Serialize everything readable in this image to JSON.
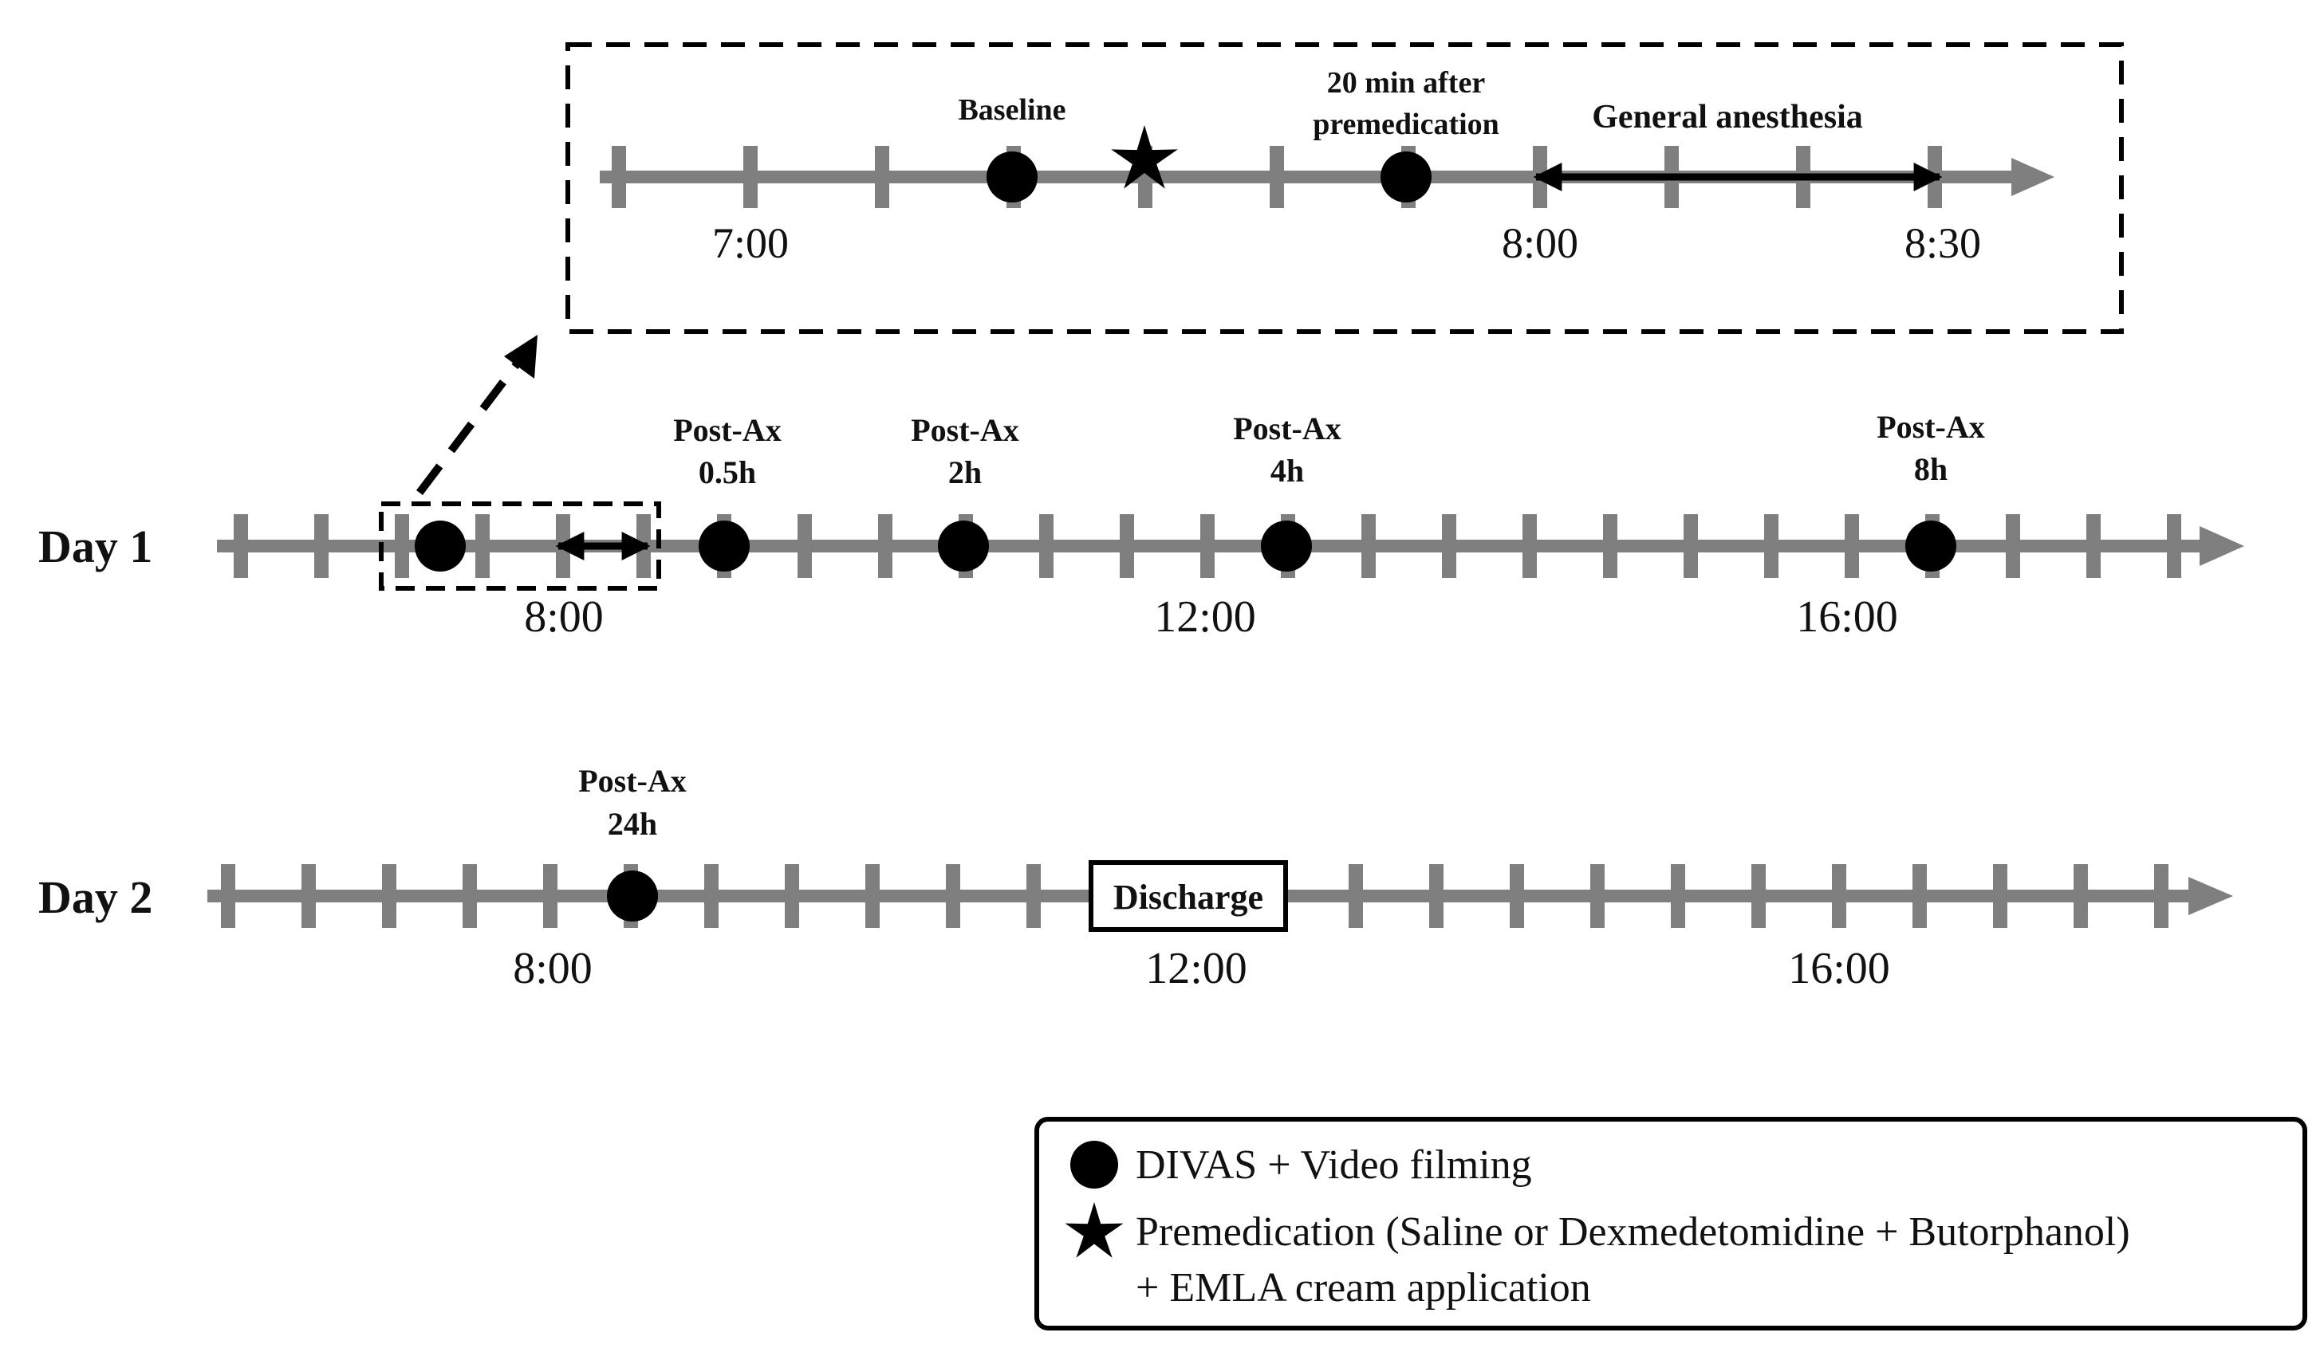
{
  "inset": {
    "time_labels": [
      "7:00",
      "8:00",
      "8:30"
    ],
    "baseline_label": "Baseline",
    "after_premed_label": [
      "20 min after",
      "premedication"
    ],
    "general_anesthesia_label": "General anesthesia"
  },
  "day1": {
    "label": "Day 1",
    "time_labels": [
      "8:00",
      "12:00",
      "16:00"
    ],
    "events": [
      {
        "label": [
          "Post-Ax",
          "0.5h"
        ]
      },
      {
        "label": [
          "Post-Ax",
          "2h"
        ]
      },
      {
        "label": [
          "Post-Ax",
          "4h"
        ]
      },
      {
        "label": [
          "Post-Ax",
          "8h"
        ]
      }
    ]
  },
  "day2": {
    "label": "Day 2",
    "time_labels": [
      "8:00",
      "12:00",
      "16:00"
    ],
    "event": {
      "label": [
        "Post-Ax",
        "24h"
      ]
    },
    "discharge_label": "Discharge"
  },
  "legend": {
    "items": [
      {
        "icon": "circle-icon",
        "text": "DIVAS + Video filming"
      },
      {
        "icon": "star-icon",
        "text": "Premedication (Saline or Dexmedetomidine + Butorphanol)",
        "text2": "+ EMLA cream application"
      }
    ]
  },
  "colors": {
    "axis": "#7f7f7f",
    "marker": "#000000"
  }
}
